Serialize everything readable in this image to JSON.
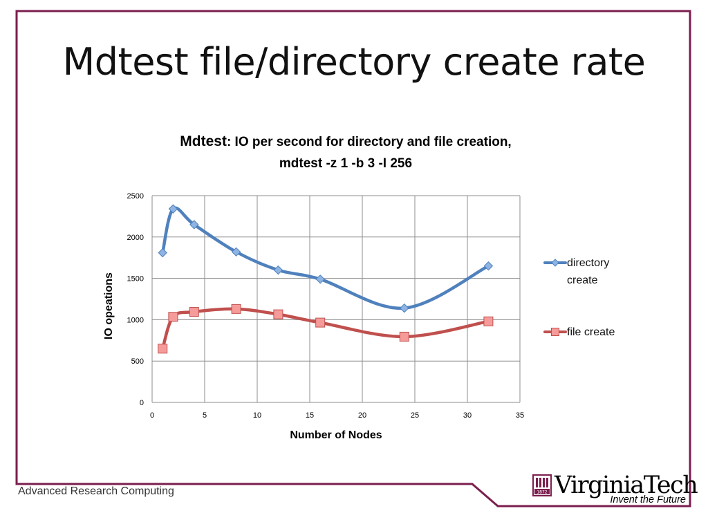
{
  "slide": {
    "title": "Mdtest file/directory create rate",
    "footer": "Advanced Research Computing",
    "logo": {
      "name": "VirginiaTech",
      "tagline": "Invent the Future",
      "seal_year": "1872"
    },
    "colors": {
      "frame": "#7b1e4e"
    }
  },
  "chart_data": {
    "type": "line",
    "title_main": "Mdtest",
    "title_rest": ": IO per second for directory and file creation,",
    "title_line2": "mdtest -z 1 -b 3 -I 256",
    "xlabel": "Number of Nodes",
    "ylabel": "IO opeations",
    "xlim": [
      0,
      35
    ],
    "ylim": [
      0,
      2500
    ],
    "xticks": [
      0,
      5,
      10,
      15,
      20,
      25,
      30,
      35
    ],
    "yticks": [
      0,
      500,
      1000,
      1500,
      2000,
      2500
    ],
    "grid": true,
    "legend_position": "right",
    "series": [
      {
        "name": "directory create",
        "name_lines": [
          "directory",
          "create"
        ],
        "color": "#4f81bd",
        "marker": "diamond",
        "x": [
          1,
          2,
          4,
          8,
          12,
          16,
          24,
          32
        ],
        "y": [
          1810,
          2340,
          2150,
          1820,
          1600,
          1490,
          1140,
          1650
        ]
      },
      {
        "name": "file create",
        "name_lines": [
          "file create"
        ],
        "color": "#c0504d",
        "marker": "square",
        "x": [
          1,
          2,
          4,
          8,
          12,
          16,
          24,
          32
        ],
        "y": [
          650,
          1035,
          1095,
          1130,
          1065,
          965,
          795,
          980
        ]
      }
    ]
  }
}
